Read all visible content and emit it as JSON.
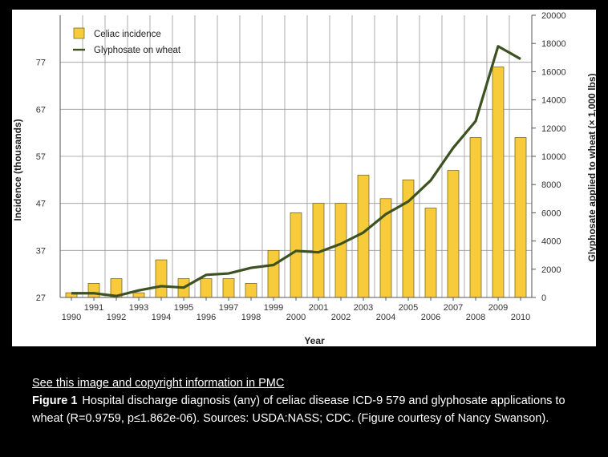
{
  "chart_data": {
    "type": "bar",
    "xlabel": "Year",
    "ylabel": "Incidence (thousands)",
    "y2label": "Glyphosate applied to wheat (× 1,000 lbs)",
    "categories": [
      "1990",
      "1991",
      "1992",
      "1993",
      "1994",
      "1995",
      "1996",
      "1997",
      "1998",
      "1999",
      "2000",
      "2001",
      "2002",
      "2003",
      "2004",
      "2005",
      "2006",
      "2007",
      "2008",
      "2009",
      "2010"
    ],
    "ylim": [
      27,
      87
    ],
    "y_ticks": [
      27,
      37,
      47,
      57,
      67,
      77
    ],
    "y2lim": [
      0,
      20000
    ],
    "y2_ticks": [
      0,
      2000,
      4000,
      6000,
      8000,
      10000,
      12000,
      14000,
      16000,
      18000,
      20000
    ],
    "series": [
      {
        "name": "Celiac incidence",
        "type": "bar",
        "axis": "left",
        "color": "#f7cb3a",
        "values": [
          28,
          30,
          31,
          28,
          35,
          31,
          31,
          31,
          30,
          37,
          45,
          47,
          47,
          53,
          48,
          52,
          46,
          54,
          61,
          76,
          61
        ]
      },
      {
        "name": "Glyphosate on wheat",
        "type": "line",
        "axis": "right",
        "color": "#3d5220",
        "values": [
          300,
          300,
          100,
          500,
          800,
          700,
          1600,
          1700,
          2100,
          2300,
          3300,
          3200,
          3800,
          4600,
          5900,
          6800,
          8300,
          10600,
          12500,
          17800,
          16900
        ]
      }
    ]
  },
  "caption": {
    "link_text": "See this image and copyright information in PMC",
    "label": "Figure 1",
    "text": "Hospital discharge diagnosis (any) of celiac disease ICD-9 579 and glyphosate applications to wheat (R=0.9759, p≤1.862e-06). Sources: USDA:NASS; CDC. (Figure courtesy of Nancy Swanson)."
  }
}
